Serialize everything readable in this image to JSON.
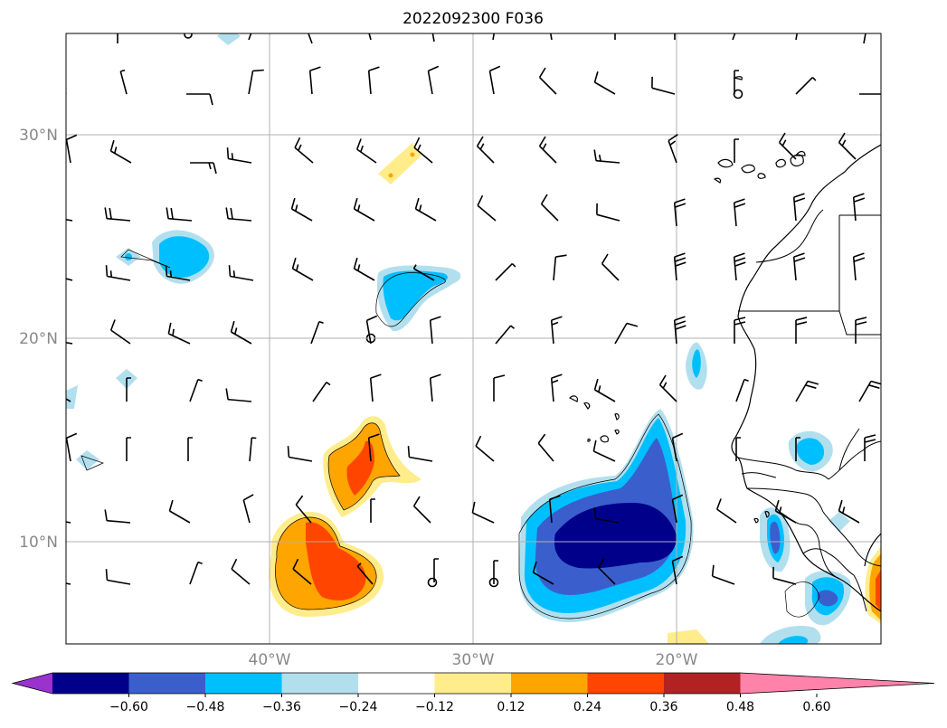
{
  "title": "2022092300 F036",
  "lat_labels": [
    "30°N",
    "20°N",
    "10°N"
  ],
  "lon_labels": [
    "40°W",
    "30°W",
    "20°W"
  ],
  "colorbar": {
    "ticks": [
      "−0.60",
      "−0.48",
      "−0.36",
      "−0.24",
      "−0.12",
      "0.12",
      "0.24",
      "0.36",
      "0.48",
      "0.60"
    ],
    "colors": [
      "#9a32cd",
      "#00008b",
      "#3a5fcd",
      "#00bfff",
      "#b2dfee",
      "#ffffff",
      "#ffec8b",
      "#ffa500",
      "#ff4500",
      "#b22222",
      "#ff82ab"
    ]
  },
  "map": {
    "extent_lon": [
      -50,
      -10
    ],
    "extent_lat": [
      5,
      35
    ],
    "features": [
      "wind barbs",
      "shaded anomaly contours",
      "coastlines",
      "country borders",
      "lat/lon grid"
    ]
  }
}
